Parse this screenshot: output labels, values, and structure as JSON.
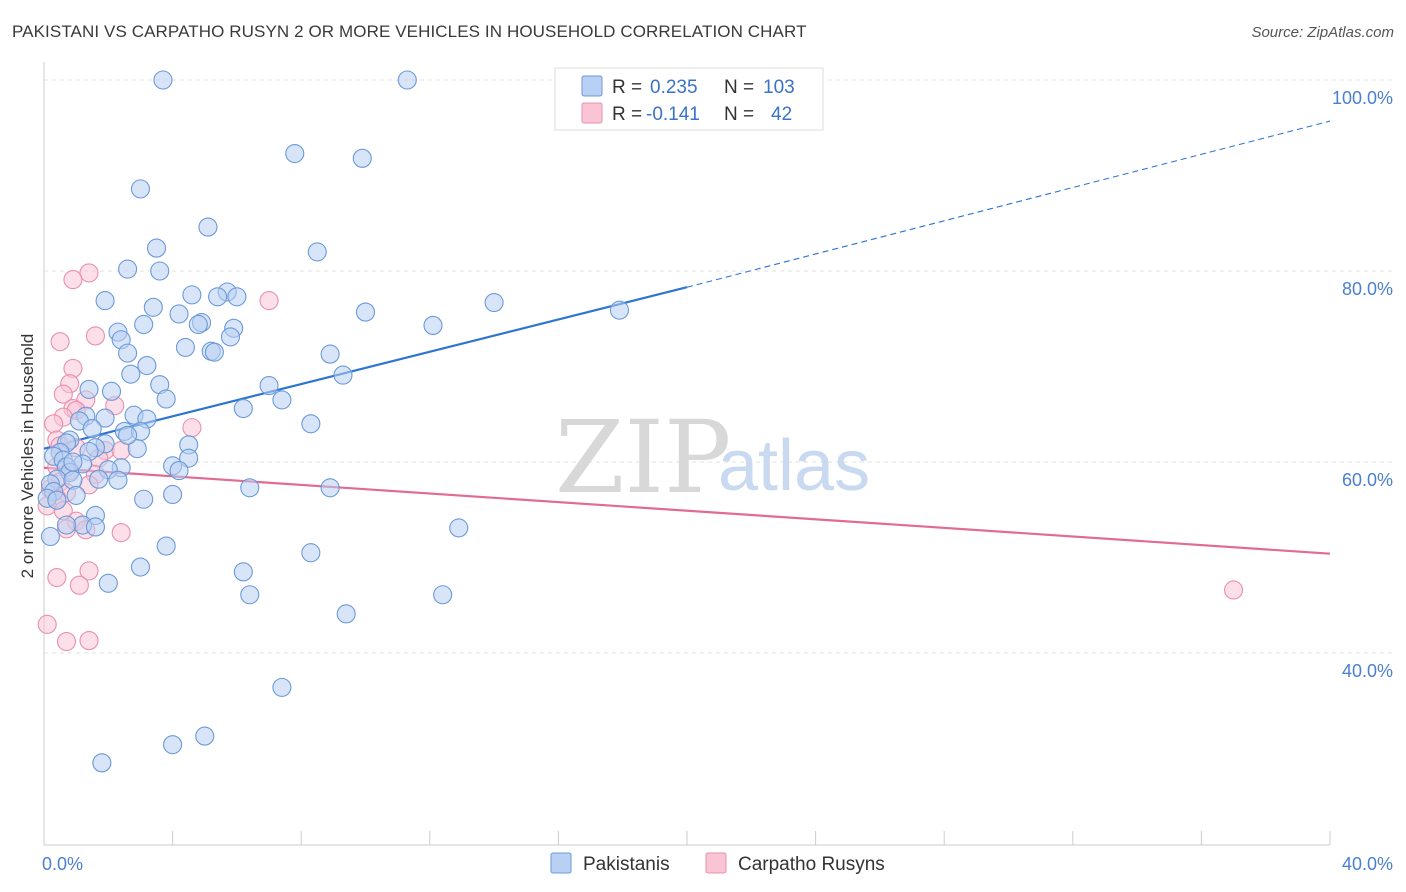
{
  "title": "PAKISTANI VS CARPATHO RUSYN 2 OR MORE VEHICLES IN HOUSEHOLD CORRELATION CHART",
  "source": "Source: ZipAtlas.com",
  "watermark": {
    "zip": "ZIP",
    "atlas": "atlas"
  },
  "colors": {
    "pakistani_fill": "#b8d0f3",
    "pakistani_stroke": "#6b9ad8",
    "pakistani_line": "#2e75d1",
    "rusyn_fill": "#f9c5d5",
    "rusyn_stroke": "#e890ad",
    "rusyn_line": "#e06b95",
    "tick": "#4a7fd0"
  },
  "legend": {
    "rows": [
      {
        "r_label": "R =",
        "r_value": "0.235",
        "n_label": "N =",
        "n_value": "103"
      },
      {
        "r_label": "R =",
        "r_value": "-0.141",
        "n_label": "N =",
        "n_value": "42"
      }
    ]
  },
  "chart_data": {
    "type": "scatter",
    "title": "PAKISTANI VS CARPATHO RUSYN 2 OR MORE VEHICLES IN HOUSEHOLD CORRELATION CHART",
    "xlabel": "",
    "ylabel": "2 or more Vehicles in Household",
    "xlim": [
      0,
      40
    ],
    "ylim": [
      20,
      102
    ],
    "x_ticks": [
      "0.0%",
      "40.0%"
    ],
    "y_ticks": [
      {
        "value": 40,
        "label": "40.0%"
      },
      {
        "value": 60,
        "label": "60.0%"
      },
      {
        "value": 80,
        "label": "80.0%"
      },
      {
        "value": 100,
        "label": "100.0%"
      }
    ],
    "grid": true,
    "legend_position": "top-center",
    "series": [
      {
        "name": "Pakistanis",
        "r": 0.235,
        "n": 103,
        "trend": {
          "x0": 0.0,
          "y0": 61.4,
          "x1": 20.0,
          "y1": 78.3,
          "dashed_to_x": 40.0,
          "dashed_to_y": 95.7
        },
        "points": [
          [
            3.7,
            100.0
          ],
          [
            11.3,
            100.0
          ],
          [
            7.8,
            92.3
          ],
          [
            9.9,
            91.8
          ],
          [
            3.0,
            88.6
          ],
          [
            5.1,
            84.6
          ],
          [
            3.5,
            82.4
          ],
          [
            8.5,
            82.0
          ],
          [
            2.6,
            80.2
          ],
          [
            3.6,
            80.0
          ],
          [
            5.7,
            77.8
          ],
          [
            6.0,
            77.3
          ],
          [
            4.6,
            77.5
          ],
          [
            5.4,
            77.3
          ],
          [
            1.9,
            76.9
          ],
          [
            3.4,
            76.2
          ],
          [
            10.0,
            75.7
          ],
          [
            14.0,
            76.7
          ],
          [
            17.9,
            75.9
          ],
          [
            4.2,
            75.5
          ],
          [
            4.9,
            74.6
          ],
          [
            4.8,
            74.4
          ],
          [
            3.1,
            74.4
          ],
          [
            12.1,
            74.3
          ],
          [
            5.9,
            74.0
          ],
          [
            2.3,
            73.6
          ],
          [
            5.8,
            73.1
          ],
          [
            2.4,
            72.8
          ],
          [
            4.4,
            72.0
          ],
          [
            5.2,
            71.6
          ],
          [
            5.3,
            71.5
          ],
          [
            2.6,
            71.4
          ],
          [
            8.9,
            71.3
          ],
          [
            3.2,
            70.1
          ],
          [
            2.7,
            69.2
          ],
          [
            9.3,
            69.1
          ],
          [
            3.6,
            68.1
          ],
          [
            7.0,
            68.0
          ],
          [
            1.4,
            67.6
          ],
          [
            2.1,
            67.4
          ],
          [
            3.8,
            66.6
          ],
          [
            7.4,
            66.5
          ],
          [
            6.2,
            65.6
          ],
          [
            2.8,
            64.9
          ],
          [
            1.9,
            64.6
          ],
          [
            3.2,
            64.5
          ],
          [
            1.3,
            64.8
          ],
          [
            1.1,
            64.3
          ],
          [
            8.3,
            64.0
          ],
          [
            1.5,
            63.5
          ],
          [
            2.5,
            63.2
          ],
          [
            3.0,
            63.2
          ],
          [
            4.5,
            61.8
          ],
          [
            1.9,
            61.9
          ],
          [
            0.8,
            62.3
          ],
          [
            0.7,
            62.0
          ],
          [
            1.6,
            61.5
          ],
          [
            2.9,
            61.4
          ],
          [
            0.5,
            61.0
          ],
          [
            1.4,
            61.1
          ],
          [
            4.5,
            60.4
          ],
          [
            0.3,
            60.6
          ],
          [
            0.6,
            60.2
          ],
          [
            1.2,
            59.8
          ],
          [
            0.7,
            59.5
          ],
          [
            4.0,
            59.6
          ],
          [
            4.2,
            59.1
          ],
          [
            2.4,
            59.4
          ],
          [
            2.0,
            59.2
          ],
          [
            0.8,
            58.9
          ],
          [
            0.4,
            58.2
          ],
          [
            0.9,
            58.1
          ],
          [
            2.3,
            58.1
          ],
          [
            1.7,
            58.2
          ],
          [
            0.2,
            57.7
          ],
          [
            6.4,
            57.3
          ],
          [
            8.9,
            57.3
          ],
          [
            0.3,
            56.9
          ],
          [
            4.0,
            56.6
          ],
          [
            3.1,
            56.1
          ],
          [
            0.1,
            56.2
          ],
          [
            0.4,
            56.0
          ],
          [
            1.6,
            54.4
          ],
          [
            1.2,
            53.4
          ],
          [
            0.7,
            53.4
          ],
          [
            1.6,
            53.2
          ],
          [
            12.9,
            53.1
          ],
          [
            0.2,
            52.2
          ],
          [
            3.8,
            51.2
          ],
          [
            8.3,
            50.5
          ],
          [
            3.0,
            49.0
          ],
          [
            6.2,
            48.5
          ],
          [
            2.0,
            47.3
          ],
          [
            6.4,
            46.1
          ],
          [
            12.4,
            46.1
          ],
          [
            9.4,
            44.1
          ],
          [
            7.4,
            36.4
          ],
          [
            5.0,
            31.3
          ],
          [
            4.0,
            30.4
          ],
          [
            1.8,
            28.5
          ],
          [
            0.9,
            60.0
          ],
          [
            2.6,
            62.8
          ],
          [
            1.0,
            56.5
          ]
        ]
      },
      {
        "name": "Carpatho Rusyns",
        "r": -0.141,
        "n": 42,
        "trend": {
          "x0": 0.0,
          "y0": 59.4,
          "x1": 40.0,
          "y1": 50.4
        },
        "points": [
          [
            1.4,
            79.8
          ],
          [
            0.9,
            79.1
          ],
          [
            7.0,
            76.9
          ],
          [
            0.5,
            72.6
          ],
          [
            1.6,
            73.2
          ],
          [
            0.9,
            69.8
          ],
          [
            0.8,
            68.2
          ],
          [
            0.6,
            67.1
          ],
          [
            1.3,
            66.5
          ],
          [
            0.9,
            65.6
          ],
          [
            2.2,
            65.9
          ],
          [
            1.0,
            65.4
          ],
          [
            0.6,
            64.7
          ],
          [
            0.3,
            64.0
          ],
          [
            4.6,
            63.6
          ],
          [
            0.4,
            62.3
          ],
          [
            0.5,
            61.7
          ],
          [
            1.0,
            61.5
          ],
          [
            1.9,
            61.2
          ],
          [
            2.4,
            61.2
          ],
          [
            1.7,
            60.4
          ],
          [
            0.4,
            59.5
          ],
          [
            0.8,
            59.1
          ],
          [
            1.6,
            58.7
          ],
          [
            0.5,
            57.9
          ],
          [
            1.4,
            57.6
          ],
          [
            0.2,
            57.2
          ],
          [
            0.7,
            56.8
          ],
          [
            0.4,
            56.2
          ],
          [
            0.1,
            55.4
          ],
          [
            0.6,
            54.9
          ],
          [
            1.0,
            53.8
          ],
          [
            0.7,
            53.0
          ],
          [
            1.3,
            52.9
          ],
          [
            2.4,
            52.6
          ],
          [
            1.4,
            48.6
          ],
          [
            0.4,
            47.9
          ],
          [
            1.1,
            47.1
          ],
          [
            37.0,
            46.6
          ],
          [
            0.1,
            43.0
          ],
          [
            0.7,
            41.2
          ],
          [
            1.4,
            41.3
          ]
        ]
      }
    ]
  },
  "bottom_legend": {
    "items": [
      "Pakistanis",
      "Carpatho Rusyns"
    ]
  }
}
